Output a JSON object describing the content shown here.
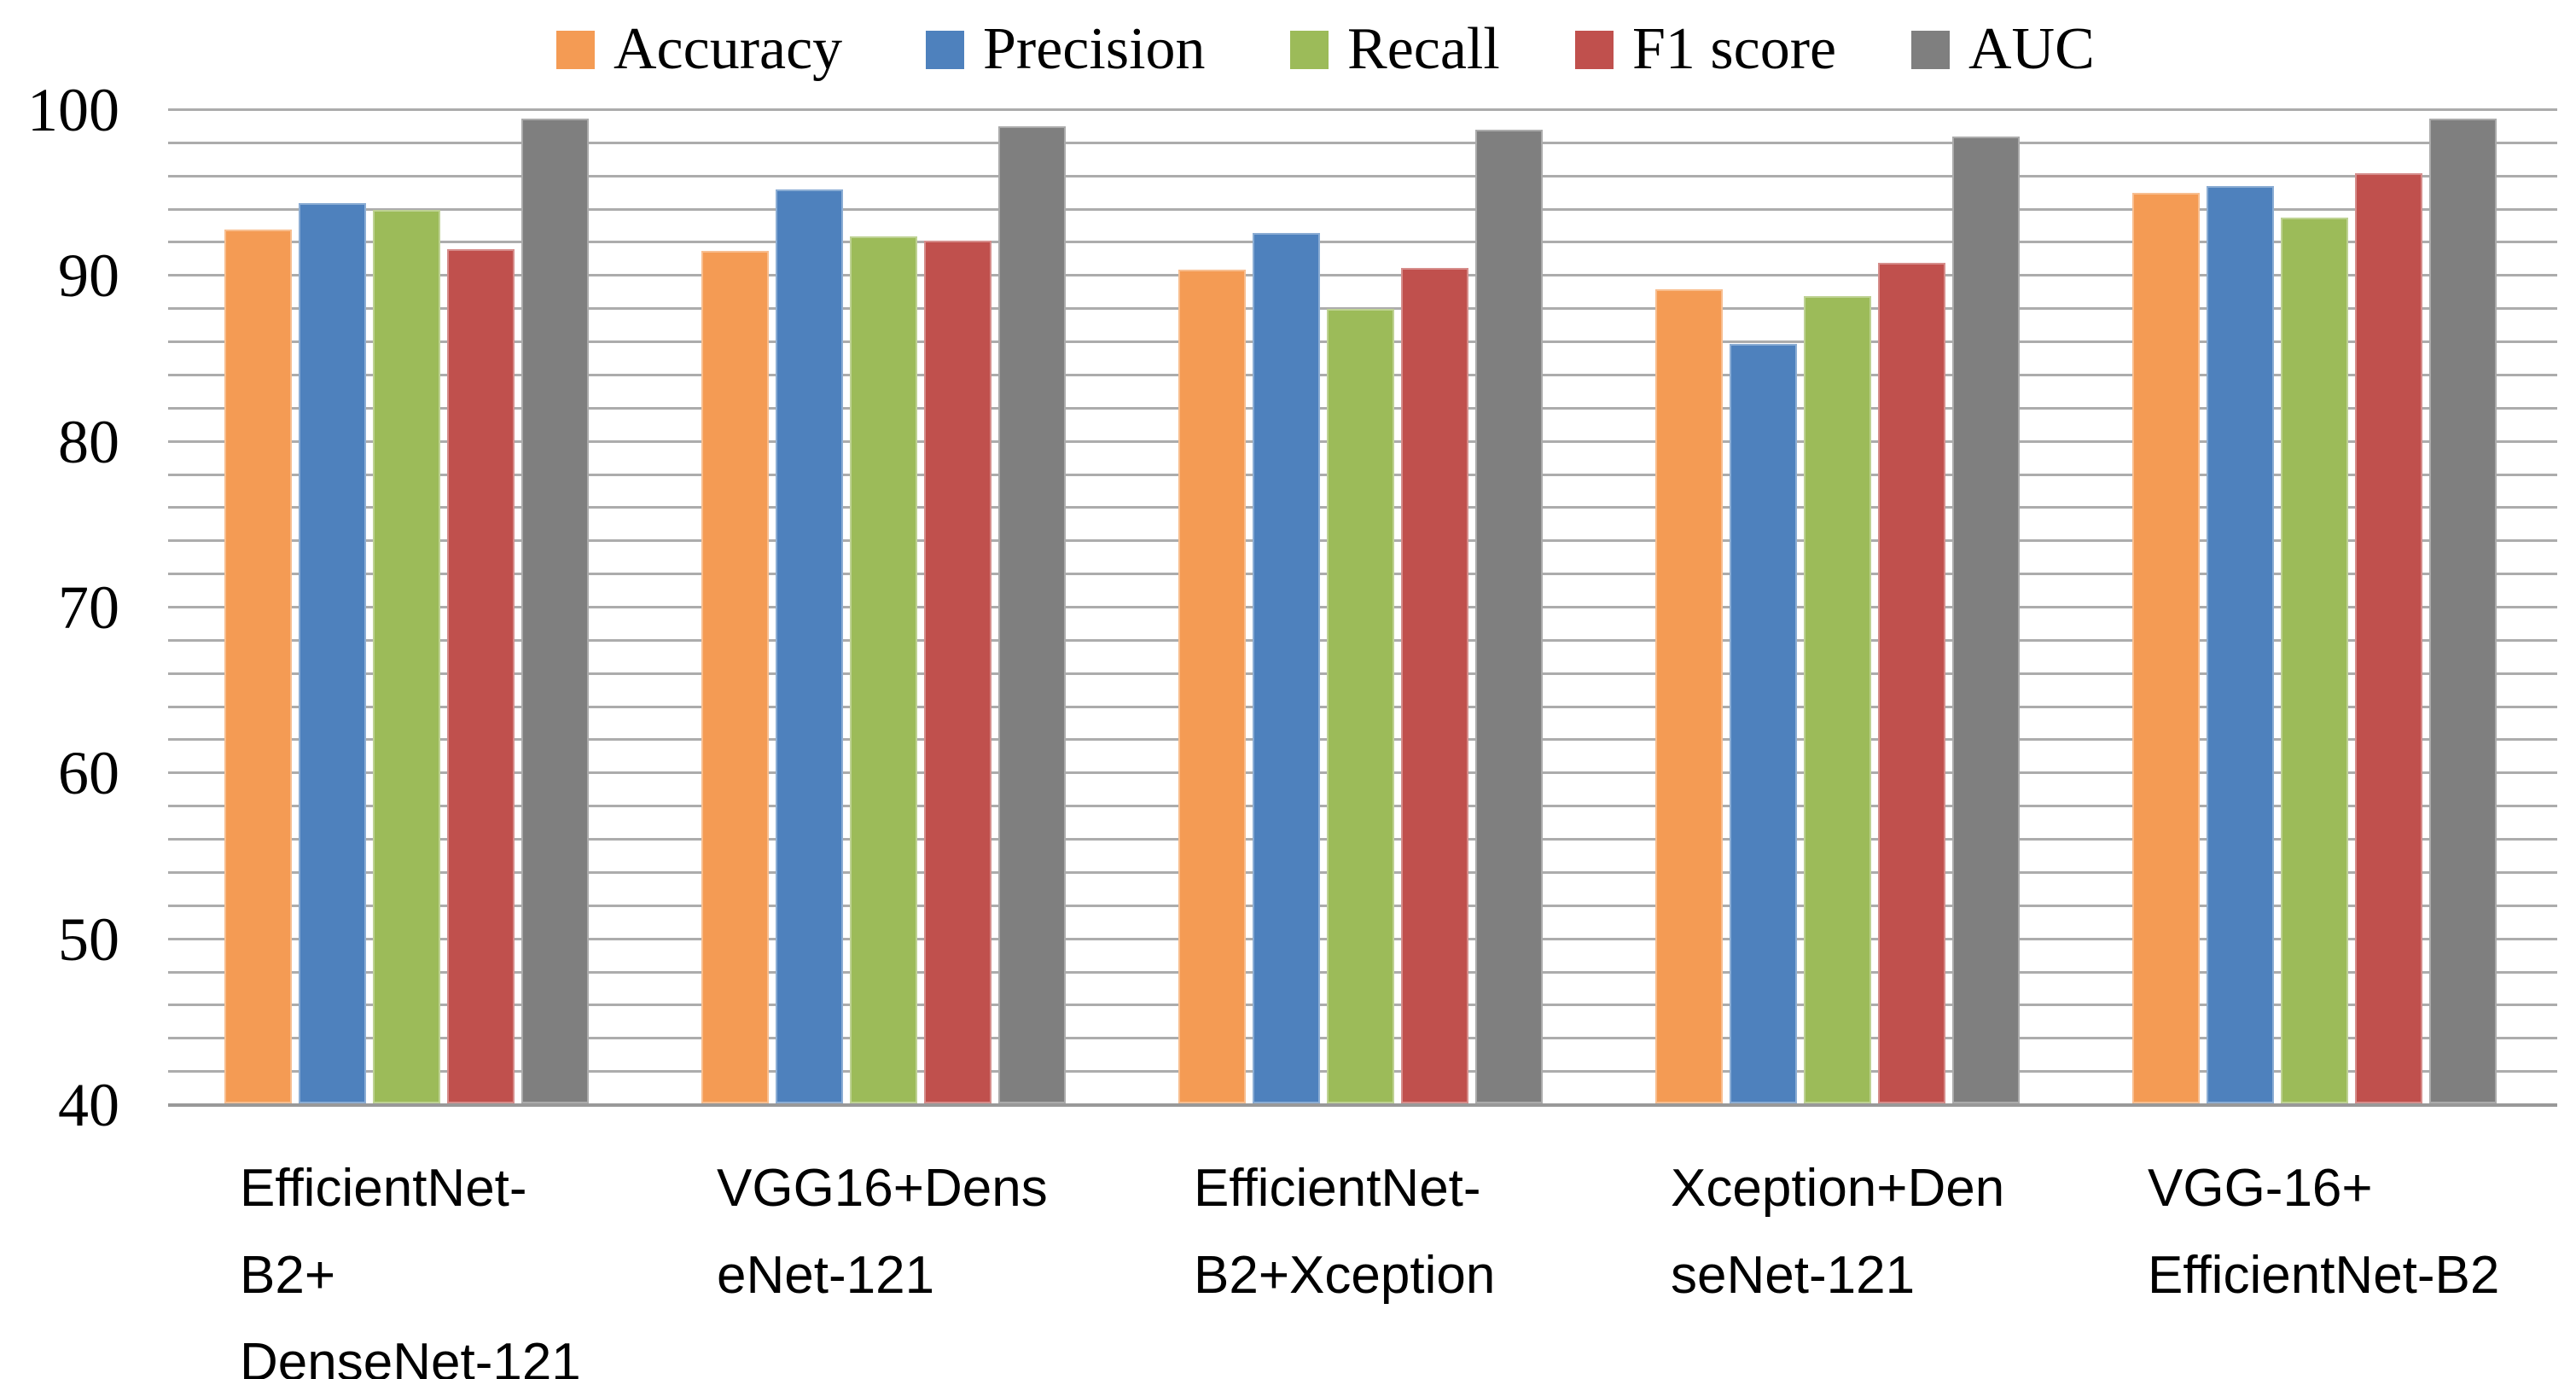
{
  "chart_data": {
    "type": "bar",
    "title": "",
    "xlabel": "",
    "ylabel": "",
    "ylim": [
      40,
      100
    ],
    "y_major_ticks": [
      100,
      90,
      80,
      70,
      60,
      50,
      40
    ],
    "y_minor_step": 2,
    "grid": true,
    "legend_position": "top",
    "categories": [
      "EfficientNet-B2+DenseNet-121",
      "VGG16+DenseNet-121",
      "EfficientNet-B2+Xception",
      "Xception+DenseNet-121",
      "VGG-16+EfficientNet-B2"
    ],
    "category_display_lines": [
      [
        "EfficientNet-",
        "B2+",
        "DenseNet-121"
      ],
      [
        "VGG16+Dens",
        "eNet-121"
      ],
      [
        "EfficientNet-",
        "B2+Xception"
      ],
      [
        "Xception+Den",
        "seNet-121"
      ],
      [
        "VGG-16+",
        "EfficientNet-B2"
      ]
    ],
    "series": [
      {
        "name": "Accuracy",
        "color": "#F49B54",
        "values": [
          92.7,
          91.4,
          90.3,
          89.1,
          94.9
        ]
      },
      {
        "name": "Precision",
        "color": "#4E81BD",
        "values": [
          94.3,
          95.1,
          92.5,
          85.8,
          95.3
        ]
      },
      {
        "name": "Recall",
        "color": "#9CBB59",
        "values": [
          93.9,
          92.3,
          87.9,
          88.7,
          93.4
        ]
      },
      {
        "name": "F1 score",
        "color": "#C0504D",
        "values": [
          91.5,
          92.0,
          90.4,
          90.7,
          96.1
        ]
      },
      {
        "name": "AUC",
        "color": "#7F7F7F",
        "values": [
          99.4,
          98.9,
          98.7,
          98.3,
          99.4
        ]
      }
    ]
  },
  "axis": {
    "y_tick_labels": [
      "100",
      "90",
      "80",
      "70",
      "60",
      "50",
      "40"
    ]
  },
  "colors": {
    "background": "#FFFFFF",
    "grid": "#ACACAC",
    "axis_line": "#999999",
    "text": "#000000"
  }
}
